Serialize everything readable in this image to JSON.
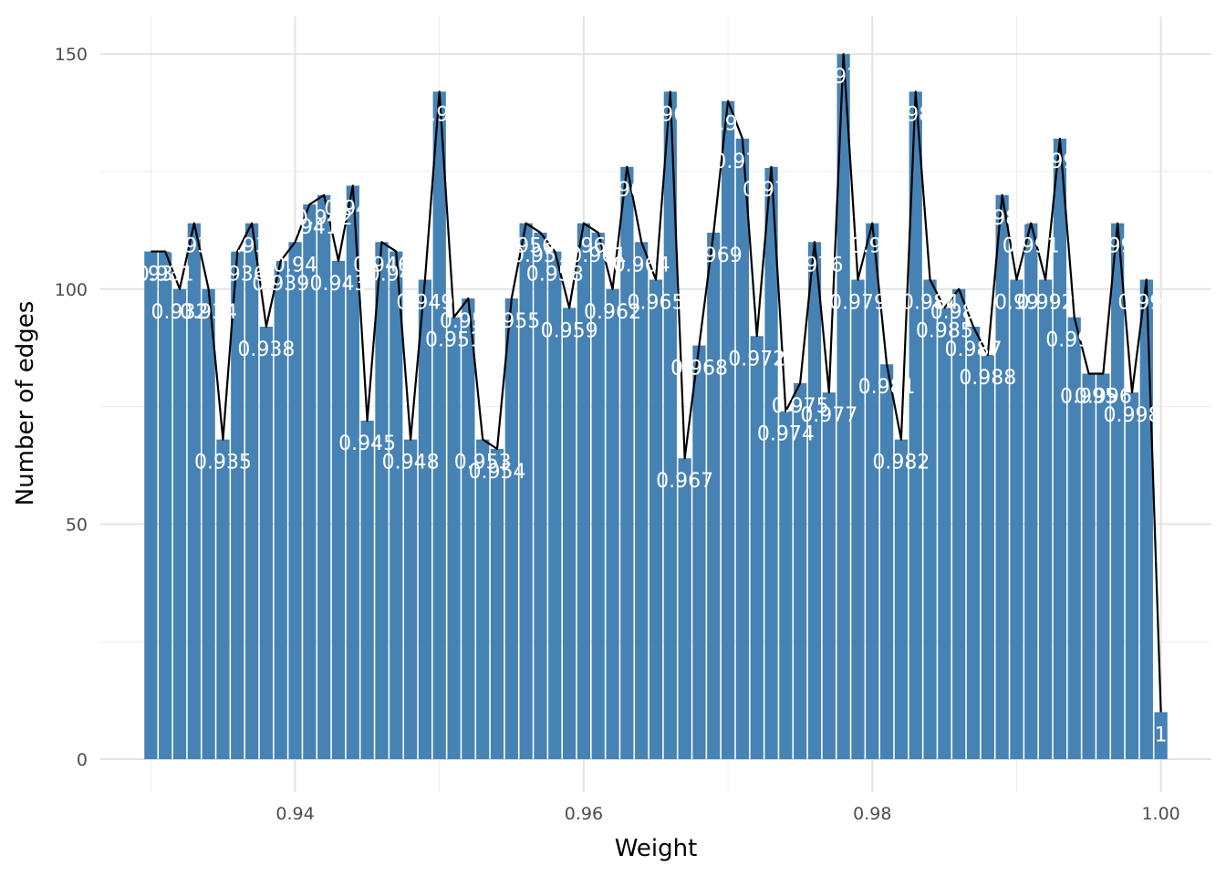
{
  "chart_data": {
    "type": "bar",
    "title": "",
    "xlabel": "Weight",
    "ylabel": "Number of edges",
    "xlim": [
      0.9265,
      1.0035
    ],
    "ylim": [
      -7,
      158
    ],
    "x_ticks": [
      "0.94",
      "0.96",
      "0.98",
      "1.00"
    ],
    "x_tick_values": [
      0.94,
      0.96,
      0.98,
      1.0
    ],
    "y_ticks": [
      "0",
      "50",
      "100",
      "150"
    ],
    "y_tick_values": [
      0,
      50,
      100,
      150
    ],
    "grid": true,
    "legend": "none",
    "bar_color": "#4682B4",
    "line_color": "#000000",
    "label_color": "#ffffff",
    "x": [
      0.93,
      0.931,
      0.932,
      0.933,
      0.934,
      0.935,
      0.936,
      0.937,
      0.938,
      0.939,
      0.94,
      0.941,
      0.942,
      0.943,
      0.944,
      0.945,
      0.946,
      0.947,
      0.948,
      0.949,
      0.95,
      0.951,
      0.952,
      0.953,
      0.954,
      0.955,
      0.956,
      0.957,
      0.958,
      0.959,
      0.96,
      0.961,
      0.962,
      0.963,
      0.964,
      0.965,
      0.966,
      0.967,
      0.968,
      0.969,
      0.97,
      0.971,
      0.972,
      0.973,
      0.974,
      0.975,
      0.976,
      0.977,
      0.978,
      0.979,
      0.98,
      0.981,
      0.982,
      0.983,
      0.984,
      0.985,
      0.986,
      0.987,
      0.988,
      0.989,
      0.99,
      0.991,
      0.992,
      0.993,
      0.994,
      0.995,
      0.996,
      0.997,
      0.998,
      0.999,
      1.0
    ],
    "values": [
      108,
      108,
      100,
      114,
      100,
      68,
      108,
      114,
      92,
      106,
      110,
      118,
      120,
      106,
      122,
      72,
      110,
      108,
      68,
      102,
      142,
      94,
      98,
      68,
      66,
      98,
      114,
      112,
      108,
      96,
      114,
      112,
      100,
      126,
      110,
      102,
      142,
      64,
      88,
      112,
      140,
      132,
      90,
      126,
      74,
      80,
      110,
      78,
      150,
      102,
      114,
      84,
      68,
      142,
      102,
      96,
      100,
      92,
      86,
      120,
      102,
      114,
      102,
      132,
      94,
      82,
      82,
      114,
      78,
      102,
      10
    ],
    "labels": [
      "0.93",
      "0.931",
      "0.932",
      "0.933",
      "0.934",
      "0.935",
      "0.936",
      "0.937",
      "0.938",
      "0.939",
      "0.94",
      "0.941",
      "0.942",
      "0.943",
      "0.944",
      "0.945",
      "0.946",
      "0.947",
      "0.948",
      "0.949",
      "0.95",
      "0.951",
      "0.952",
      "0.953",
      "0.954",
      "0.955",
      "0.956",
      "0.957",
      "0.958",
      "0.959",
      "0.96",
      "0.961",
      "0.962",
      "0.963",
      "0.964",
      "0.965",
      "0.966",
      "0.967",
      "0.968",
      "0.969",
      "0.97",
      "0.971",
      "0.972",
      "0.973",
      "0.974",
      "0.975",
      "0.976",
      "0.977",
      "0.978",
      "0.979",
      "0.98",
      "0.981",
      "0.982",
      "0.983",
      "0.984",
      "0.985",
      "0.986",
      "0.987",
      "0.988",
      "0.989",
      "0.99",
      "0.991",
      "0.992",
      "0.993",
      "0.994",
      "0.995",
      "0.996",
      "0.997",
      "0.998",
      "0.999",
      "1"
    ]
  }
}
